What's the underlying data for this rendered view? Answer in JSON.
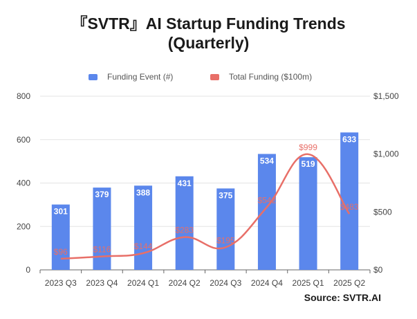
{
  "chart_data": {
    "type": "bar+line",
    "title_line1": "『SVTR』AI Startup Funding Trends",
    "title_line2": "(Quarterly)",
    "categories": [
      "2023 Q3",
      "2023 Q4",
      "2024 Q1",
      "2024 Q2",
      "2024 Q3",
      "2024 Q4",
      "2025 Q1",
      "2025 Q2"
    ],
    "series": [
      {
        "name": "Funding Event  (#)",
        "type": "bar",
        "axis": "left",
        "color": "#5B87EC",
        "values": [
          301,
          379,
          388,
          431,
          375,
          534,
          519,
          633
        ],
        "labels": [
          "301",
          "379",
          "388",
          "431",
          "375",
          "534",
          "519",
          "633"
        ]
      },
      {
        "name": "Total Funding  ($100m)",
        "type": "line",
        "axis": "right",
        "color": "#E86F68",
        "values": [
          96,
          116,
          144,
          283,
          195,
          542,
          999,
          483
        ],
        "labels": [
          "$96",
          "$116",
          "$144",
          "$283",
          "$195",
          "$542",
          "$999",
          "$483"
        ]
      }
    ],
    "left_axis": {
      "ylim": [
        0,
        800
      ],
      "ticks": [
        "0",
        "200",
        "400",
        "600",
        "800"
      ]
    },
    "right_axis": {
      "ylim": [
        0,
        1500
      ],
      "ticks": [
        "$0",
        "$500",
        "$1,000",
        "$1,500"
      ]
    },
    "legend_position": "top",
    "grid": true
  },
  "source": "Source:  SVTR.AI"
}
